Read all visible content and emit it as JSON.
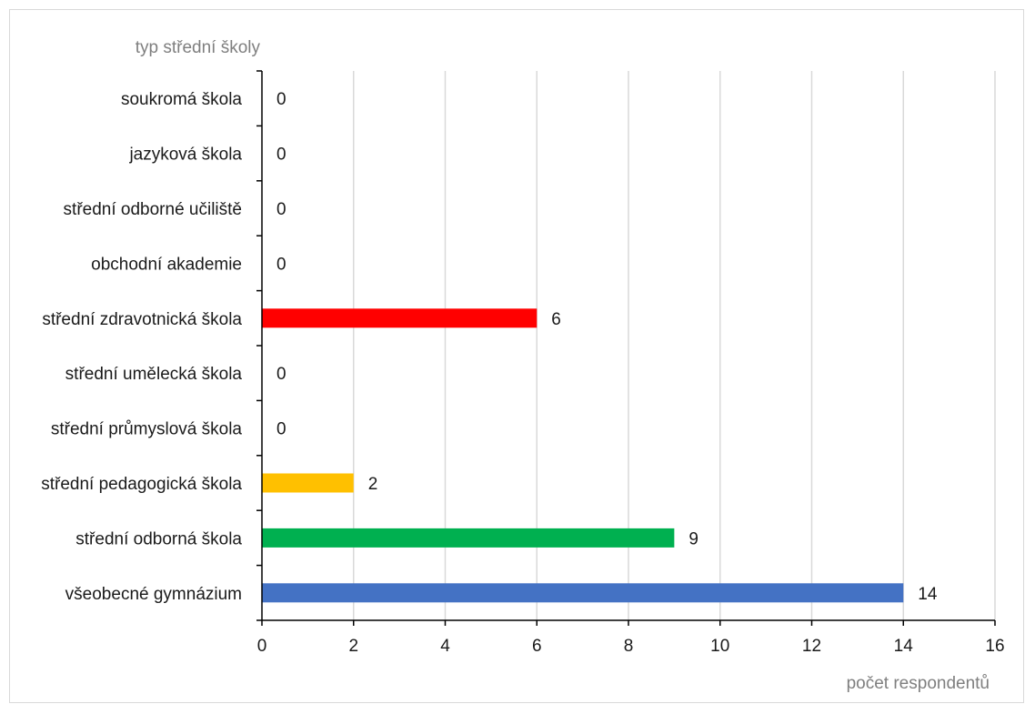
{
  "chart_data": {
    "type": "bar",
    "orientation": "horizontal",
    "categories": [
      "soukromá škola",
      "jazyková škola",
      "střední odborné učiliště",
      "obchodní akademie",
      "střední zdravotnická škola",
      "střední umělecká škola",
      "střední průmyslová škola",
      "střední pedagogická škola",
      "střední odborná škola",
      "všeobecné gymnázium"
    ],
    "values": [
      0,
      0,
      0,
      0,
      6,
      0,
      0,
      2,
      9,
      14
    ],
    "bar_colors": [
      "#4472c4",
      "#4472c4",
      "#4472c4",
      "#4472c4",
      "#ff0000",
      "#4472c4",
      "#4472c4",
      "#ffc000",
      "#00b050",
      "#4472c4"
    ],
    "ylabel": "typ střední školy",
    "xlabel": "počet respondentů",
    "xlim": [
      0,
      16
    ],
    "xticks": [
      0,
      2,
      4,
      6,
      8,
      10,
      12,
      14,
      16
    ],
    "grid": "vertical",
    "data_labels": true
  }
}
